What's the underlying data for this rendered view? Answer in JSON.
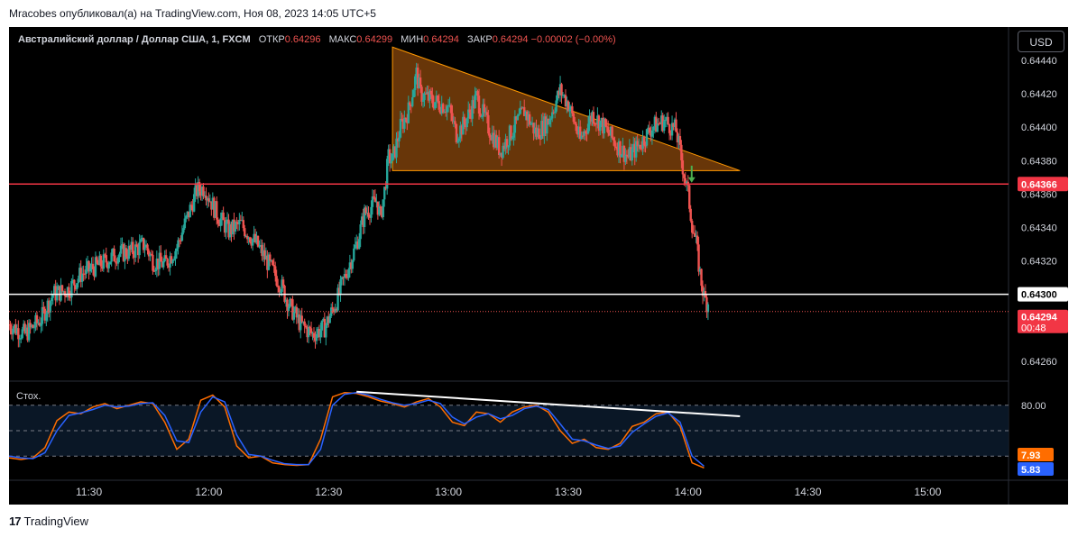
{
  "header": {
    "publish_text": "Mracobes опубликовал(а) на TradingView.com, Ноя 08, 2023 14:05 UTC+5"
  },
  "legend": {
    "symbol": "Австралийский доллар / Доллар США, 1, FXCM",
    "open_label": "ОТКР",
    "open_value": "0.64296",
    "high_label": "МАКС",
    "high_value": "0.64299",
    "low_label": "МИН",
    "low_value": "0.64294",
    "close_label": "ЗАКР",
    "close_value": "0.64294",
    "change_value": "−0.00002 (−0.00%)"
  },
  "currency_button": "USD",
  "stoch_label": "Стох.",
  "footer": {
    "logo": "17",
    "brand": "TradingView"
  },
  "colors": {
    "background": "#000000",
    "up": "#26a69a",
    "down": "#ef5350",
    "stoch_k": "#2962ff",
    "stoch_d": "#ff6d00",
    "triangle_fill": "#7a3f0a",
    "triangle_stroke": "#ff9800",
    "resistance": "#f23645",
    "support": "#ffffff"
  },
  "chart_data": [
    {
      "type": "candlestick",
      "x_ticks": [
        "11:30",
        "12:00",
        "12:30",
        "13:00",
        "13:30",
        "14:00",
        "14:30",
        "15:00"
      ],
      "y_ticks": [
        "0.64440",
        "0.64420",
        "0.64400",
        "0.64380",
        "0.64360",
        "0.64340",
        "0.64320",
        "0.64300",
        "0.64280",
        "0.64260"
      ],
      "ylim": [
        0.64248,
        0.6446
      ],
      "xlim": [
        "11:10",
        "15:20"
      ],
      "price_markers": [
        {
          "value": 0.64366,
          "label": "0.64366",
          "color": "#f23645"
        },
        {
          "value": 0.643,
          "label": "0.64300",
          "color": "#ffffff"
        },
        {
          "value": 0.64294,
          "label": "0.64294",
          "sublabel": "00:48",
          "color": "#f23645"
        }
      ],
      "horizontal_lines": [
        {
          "value": 0.64366,
          "color": "#f23645"
        },
        {
          "value": 0.643,
          "color": "#ffffff"
        }
      ],
      "triangle": [
        [
          "12:46",
          0.64448
        ],
        [
          "14:13",
          0.64374
        ],
        [
          "12:46",
          0.64374
        ]
      ],
      "arrow": {
        "time": "14:00",
        "from": 0.64377,
        "to": 0.64369
      },
      "key_points": [
        [
          "11:10",
          0.64282
        ],
        [
          "11:14",
          0.64276
        ],
        [
          "11:18",
          0.64285
        ],
        [
          "11:21",
          0.643
        ],
        [
          "11:25",
          0.64303
        ],
        [
          "11:28",
          0.64312
        ],
        [
          "11:33",
          0.64318
        ],
        [
          "11:37",
          0.64324
        ],
        [
          "11:41",
          0.64326
        ],
        [
          "11:44",
          0.6433
        ],
        [
          "11:46",
          0.6432
        ],
        [
          "11:49",
          0.64318
        ],
        [
          "11:52",
          0.64328
        ],
        [
          "11:54",
          0.64342
        ],
        [
          "11:57",
          0.64362
        ],
        [
          "11:59",
          0.64364
        ],
        [
          "12:02",
          0.64348
        ],
        [
          "12:05",
          0.64338
        ],
        [
          "12:08",
          0.64342
        ],
        [
          "12:12",
          0.6433
        ],
        [
          "12:15",
          0.64318
        ],
        [
          "12:18",
          0.64306
        ],
        [
          "12:20",
          0.64294
        ],
        [
          "12:23",
          0.64282
        ],
        [
          "12:26",
          0.64276
        ],
        [
          "12:29",
          0.6428
        ],
        [
          "12:32",
          0.64296
        ],
        [
          "12:34",
          0.6431
        ],
        [
          "12:37",
          0.6433
        ],
        [
          "12:39",
          0.64348
        ],
        [
          "12:42",
          0.64356
        ],
        [
          "12:43",
          0.64346
        ],
        [
          "12:44",
          0.64362
        ],
        [
          "12:45",
          0.64382
        ],
        [
          "12:46",
          0.6438
        ],
        [
          "12:48",
          0.644
        ],
        [
          "12:50",
          0.6441
        ],
        [
          "12:52",
          0.64432
        ],
        [
          "12:53",
          0.6442
        ],
        [
          "12:56",
          0.64416
        ],
        [
          "13:00",
          0.64412
        ],
        [
          "13:02",
          0.64396
        ],
        [
          "13:04",
          0.64402
        ],
        [
          "13:07",
          0.64418
        ],
        [
          "13:10",
          0.644
        ],
        [
          "13:13",
          0.64386
        ],
        [
          "13:16",
          0.64398
        ],
        [
          "13:19",
          0.6441
        ],
        [
          "13:22",
          0.64396
        ],
        [
          "13:25",
          0.64404
        ],
        [
          "13:28",
          0.64422
        ],
        [
          "13:30",
          0.64414
        ],
        [
          "13:33",
          0.64392
        ],
        [
          "13:36",
          0.64408
        ],
        [
          "13:39",
          0.644
        ],
        [
          "13:42",
          0.6439
        ],
        [
          "13:45",
          0.64382
        ],
        [
          "13:48",
          0.6439
        ],
        [
          "13:51",
          0.644
        ],
        [
          "13:54",
          0.64404
        ],
        [
          "13:57",
          0.64398
        ],
        [
          "13:59",
          0.64372
        ],
        [
          "14:00",
          0.6436
        ],
        [
          "14:01",
          0.64342
        ],
        [
          "14:02",
          0.6433
        ],
        [
          "14:03",
          0.64312
        ],
        [
          "14:04",
          0.64298
        ],
        [
          "14:05",
          0.64294
        ]
      ]
    },
    {
      "type": "line",
      "name": "Стох.",
      "y_ticks": [
        "80.00"
      ],
      "y_range": [
        0,
        100
      ],
      "bands": [
        20,
        50,
        80
      ],
      "last_values": [
        {
          "label": "7.93",
          "color": "#ff6d00"
        },
        {
          "label": "5.83",
          "color": "#2962ff"
        }
      ],
      "x": [
        "11:10",
        "11:13",
        "11:16",
        "11:19",
        "11:22",
        "11:25",
        "11:28",
        "11:31",
        "11:34",
        "11:37",
        "11:40",
        "11:43",
        "11:46",
        "11:49",
        "11:52",
        "11:55",
        "11:58",
        "12:01",
        "12:04",
        "12:07",
        "12:10",
        "12:13",
        "12:16",
        "12:19",
        "12:22",
        "12:25",
        "12:28",
        "12:31",
        "12:34",
        "12:37",
        "12:40",
        "12:43",
        "12:46",
        "12:49",
        "12:52",
        "12:55",
        "12:58",
        "13:01",
        "13:04",
        "13:07",
        "13:10",
        "13:13",
        "13:16",
        "13:19",
        "13:22",
        "13:25",
        "13:28",
        "13:31",
        "13:34",
        "13:37",
        "13:40",
        "13:43",
        "13:46",
        "13:49",
        "13:52",
        "13:55",
        "13:58",
        "14:01",
        "14:04"
      ],
      "series": [
        {
          "values": [
            18,
            16,
            18,
            30,
            62,
            72,
            70,
            78,
            82,
            76,
            80,
            84,
            82,
            60,
            28,
            40,
            86,
            92,
            78,
            32,
            18,
            20,
            12,
            10,
            9,
            10,
            40,
            90,
            95,
            94,
            90,
            85,
            82,
            78,
            84,
            88,
            78,
            60,
            56,
            72,
            70,
            60,
            72,
            78,
            80,
            72,
            50,
            35,
            40,
            30,
            28,
            35,
            55,
            60,
            70,
            72,
            55,
            12,
            6
          ]
        },
        {
          "values": [
            20,
            18,
            17,
            24,
            50,
            68,
            71,
            75,
            80,
            78,
            79,
            82,
            83,
            68,
            38,
            36,
            72,
            90,
            84,
            45,
            22,
            20,
            15,
            11,
            10,
            10,
            28,
            80,
            93,
            95,
            92,
            87,
            83,
            80,
            82,
            86,
            82,
            66,
            58,
            66,
            70,
            64,
            68,
            76,
            79,
            75,
            58,
            40,
            38,
            33,
            29,
            32,
            48,
            58,
            67,
            71,
            60,
            20,
            8
          ]
        }
      ],
      "annotations": [
        {
          "type": "trendline",
          "from": [
            "12:37",
            96
          ],
          "to": [
            "14:13",
            67
          ]
        }
      ]
    }
  ]
}
